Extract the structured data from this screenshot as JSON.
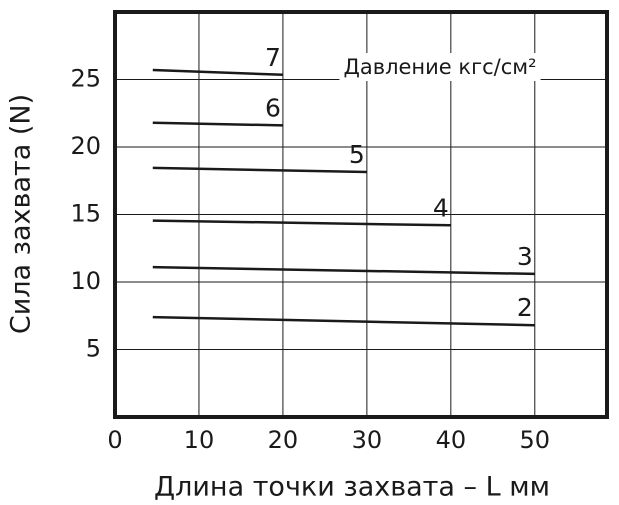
{
  "chart_data": {
    "type": "line",
    "x_label": "Длина точки захвата – L мм",
    "y_label": "Сила захвата (N)",
    "annotation": "Давление кгс/см²",
    "xlim": [
      0,
      58.6
    ],
    "ylim": [
      0,
      30
    ],
    "xticks": [
      0,
      10,
      20,
      30,
      40,
      50
    ],
    "yticks": [
      5,
      10,
      15,
      20,
      25
    ],
    "grid": true,
    "series": [
      {
        "name": "7",
        "color": "#1a1a1a",
        "x": [
          4.5,
          20
        ],
        "values": [
          25.7,
          25.35
        ]
      },
      {
        "name": "6",
        "color": "#1a1a1a",
        "x": [
          4.5,
          20
        ],
        "values": [
          21.8,
          21.6
        ]
      },
      {
        "name": "5",
        "color": "#1a1a1a",
        "x": [
          4.5,
          30
        ],
        "values": [
          18.45,
          18.15
        ]
      },
      {
        "name": "4",
        "color": "#1a1a1a",
        "x": [
          4.5,
          40
        ],
        "values": [
          14.55,
          14.2
        ]
      },
      {
        "name": "3",
        "color": "#1a1a1a",
        "x": [
          4.5,
          50
        ],
        "values": [
          11.1,
          10.6
        ]
      },
      {
        "name": "2",
        "color": "#1a1a1a",
        "x": [
          4.5,
          50
        ],
        "values": [
          7.4,
          6.8
        ]
      }
    ]
  }
}
